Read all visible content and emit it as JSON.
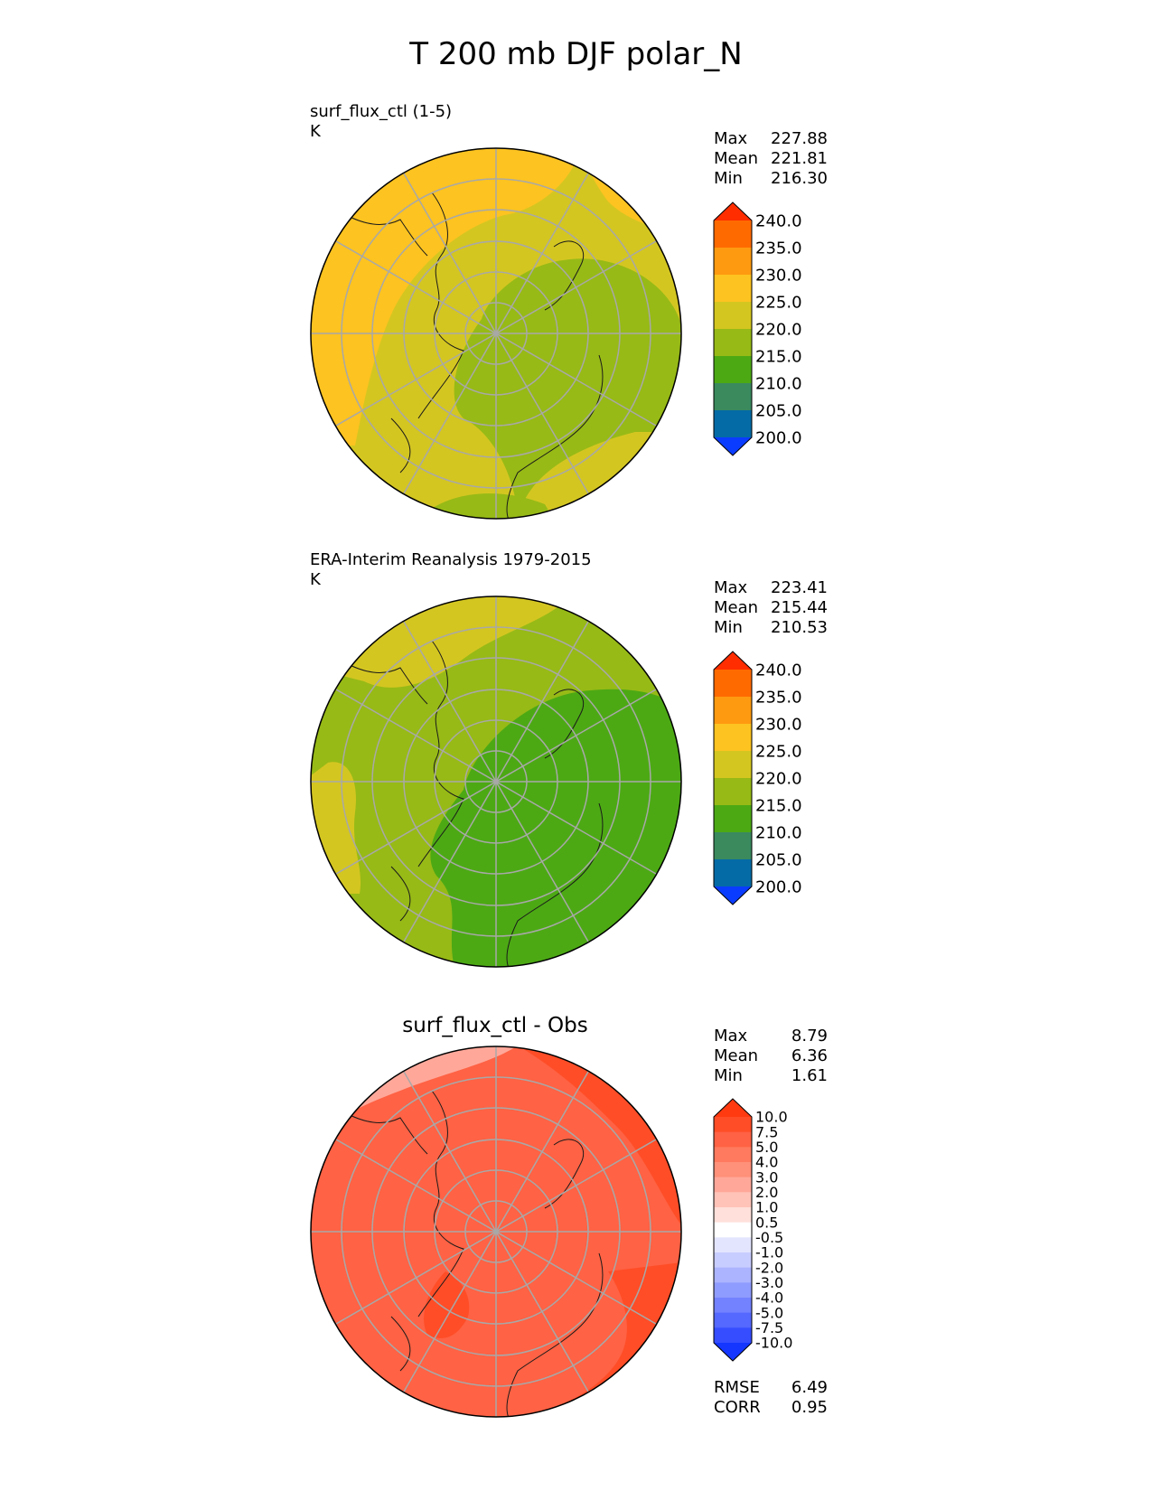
{
  "figure_title": "T 200 mb DJF polar_N",
  "panels": [
    {
      "title": "surf_flux_ctl (1-5)",
      "units": "K",
      "stats": [
        {
          "label": "Max",
          "value": "227.88"
        },
        {
          "label": "Mean",
          "value": "221.81"
        },
        {
          "label": "Min",
          "value": "216.30"
        }
      ]
    },
    {
      "title": "ERA-Interim Reanalysis 1979-2015",
      "units": "K",
      "stats": [
        {
          "label": "Max",
          "value": "223.41"
        },
        {
          "label": "Mean",
          "value": "215.44"
        },
        {
          "label": "Min",
          "value": "210.53"
        }
      ]
    },
    {
      "title": "surf_flux_ctl - Obs",
      "units": "",
      "stats": [
        {
          "label": "Max",
          "value": "8.79"
        },
        {
          "label": "Mean",
          "value": "6.36"
        },
        {
          "label": "Min",
          "value": "1.61"
        }
      ],
      "extra_stats": [
        {
          "label": "RMSE",
          "value": "6.49"
        },
        {
          "label": "CORR",
          "value": "0.95"
        }
      ]
    }
  ],
  "colorbars": {
    "absolute": {
      "levels": [
        "240.0",
        "235.0",
        "230.0",
        "225.0",
        "220.0",
        "215.0",
        "210.0",
        "205.0",
        "200.0"
      ],
      "colors": [
        "#ff2d00",
        "#ff6a00",
        "#fe9a10",
        "#fdc320",
        "#d4c621",
        "#97ba16",
        "#4ca914",
        "#3a8a5e",
        "#056ba6",
        "#0a3cff"
      ]
    },
    "difference": {
      "levels": [
        "10.0",
        "7.5",
        "5.0",
        "4.0",
        "3.0",
        "2.0",
        "1.0",
        "0.5",
        "-0.5",
        "-1.0",
        "-2.0",
        "-3.0",
        "-4.0",
        "-5.0",
        "-7.5",
        "-10.0"
      ],
      "colors": [
        "#ff3a10",
        "#ff4d27",
        "#ff6244",
        "#ff7a5e",
        "#ff9079",
        "#ffa89a",
        "#ffc3b8",
        "#ffe0da",
        "#ffffff",
        "#e3e5ff",
        "#c8cdff",
        "#acb4ff",
        "#8f9cff",
        "#7382ff",
        "#5568ff",
        "#354dff",
        "#1436ff"
      ]
    }
  },
  "chart_data": [
    {
      "type": "polar-contour-map",
      "title": "surf_flux_ctl (1-5)",
      "variable": "T 200 mb DJF polar_N",
      "units": "K",
      "stats": {
        "max": 227.88,
        "mean": 221.81,
        "min": 216.3
      },
      "contour_levels": [
        200,
        205,
        210,
        215,
        220,
        225,
        230,
        235,
        240
      ],
      "background_band": "220-225",
      "regions": [
        {
          "band": "225-230",
          "where": "Pacific / North America / Greenland sector"
        },
        {
          "band": "215-220",
          "where": "Arctic / Siberia"
        },
        {
          "band": "220-225",
          "where": "elsewhere"
        }
      ]
    },
    {
      "type": "polar-contour-map",
      "title": "ERA-Interim Reanalysis 1979-2015",
      "units": "K",
      "stats": {
        "max": 223.41,
        "mean": 215.44,
        "min": 210.53
      },
      "contour_levels": [
        200,
        205,
        210,
        215,
        220,
        225,
        230,
        235,
        240
      ],
      "background_band": "215-220",
      "regions": [
        {
          "band": "220-225",
          "where": "Pacific and North American edges"
        },
        {
          "band": "210-215",
          "where": "Arctic / Eurasia"
        },
        {
          "band": "215-220",
          "where": "elsewhere"
        }
      ]
    },
    {
      "type": "polar-contour-map",
      "title": "surf_flux_ctl - Obs",
      "stats": {
        "max": 8.79,
        "mean": 6.36,
        "min": 1.61,
        "rmse": 6.49,
        "corr": 0.95
      },
      "contour_levels": [
        -10,
        -7.5,
        -5,
        -4,
        -3,
        -2,
        -1,
        -0.5,
        0.5,
        1,
        2,
        3,
        4,
        5,
        7.5,
        10
      ],
      "background_band": "5.0-7.5",
      "regions": [
        {
          "band": "2.0-4.0",
          "where": "Pacific edge"
        },
        {
          "band": "7.5-10.0",
          "where": "Eurasia / Atlantic"
        },
        {
          "band": "5.0-7.5",
          "where": "elsewhere"
        }
      ]
    }
  ]
}
